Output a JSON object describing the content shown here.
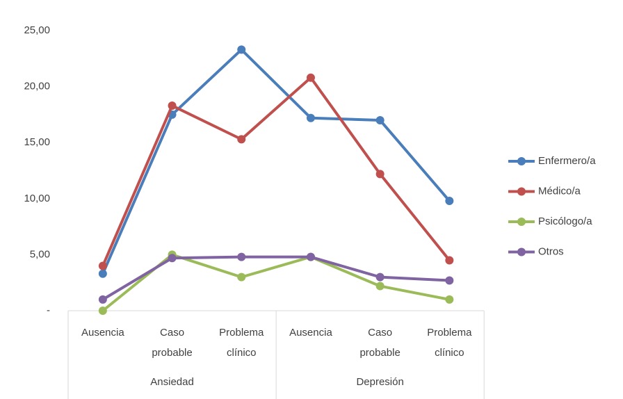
{
  "chart_data": {
    "type": "line",
    "groups": [
      {
        "label": "Ansiedad",
        "categories": [
          "Ausencia",
          "Caso probable",
          "Problema clínico"
        ]
      },
      {
        "label": "Depresión",
        "categories": [
          "Ausencia",
          "Caso probable",
          "Problema clínico"
        ]
      }
    ],
    "series": [
      {
        "name": "Enfermero/a",
        "color": "#4a7ebb",
        "values": [
          3.3,
          17.5,
          23.3,
          17.2,
          17.0,
          9.8
        ]
      },
      {
        "name": "Médico/a",
        "color": "#c0504d",
        "values": [
          4.0,
          18.3,
          15.3,
          20.8,
          12.2,
          4.5
        ]
      },
      {
        "name": "Psicólogo/a",
        "color": "#9bbb59",
        "values": [
          0,
          5.0,
          3.0,
          4.8,
          2.2,
          1.0
        ]
      },
      {
        "name": "Otros",
        "color": "#8064a2",
        "values": [
          1.0,
          4.7,
          4.8,
          4.8,
          3.0,
          2.7
        ]
      }
    ],
    "ylim": [
      0,
      25
    ],
    "yticks": [
      {
        "value": 0,
        "label": "-"
      },
      {
        "value": 5,
        "label": "5,00"
      },
      {
        "value": 10,
        "label": "10,00"
      },
      {
        "value": 15,
        "label": "15,00"
      },
      {
        "value": 20,
        "label": "20,00"
      },
      {
        "value": 25,
        "label": "25,00"
      }
    ],
    "grid": false,
    "legend": "right"
  }
}
